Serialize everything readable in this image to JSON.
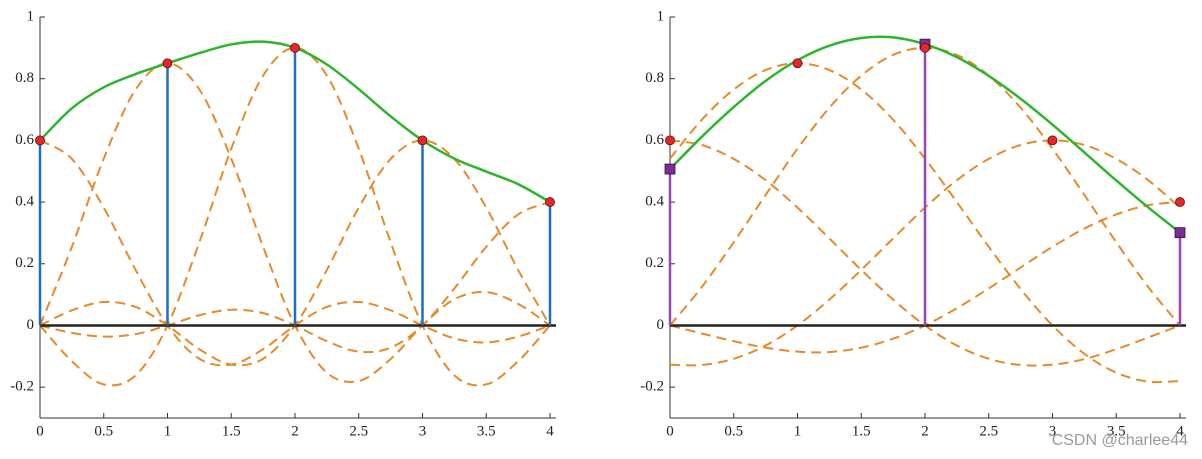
{
  "chart_data": [
    {
      "type": "line",
      "x": [
        0,
        0.25,
        0.5,
        0.75,
        1,
        1.25,
        1.5,
        1.75,
        2,
        2.25,
        2.5,
        2.75,
        3,
        3.25,
        3.5,
        3.75,
        4
      ],
      "series": [
        {
          "color": "#2db52d",
          "style": "solid",
          "values": [
            0.6,
            0.704,
            0.772,
            0.815,
            0.85,
            0.883,
            0.911,
            0.92,
            0.9,
            0.846,
            0.766,
            0.678,
            0.6,
            0.541,
            0.499,
            0.458,
            0.4
          ]
        },
        {
          "color": "#e8892a",
          "style": "dashed",
          "values": [
            0.6,
            0.54,
            0.382,
            0.18,
            0,
            -0.108,
            -0.127,
            -0.077,
            0,
            0.06,
            0.076,
            0.049,
            0,
            -0.042,
            -0.055,
            -0.036,
            0
          ]
        },
        {
          "color": "#e8892a",
          "style": "dashed",
          "values": [
            0,
            0.255,
            0.541,
            0.765,
            0.85,
            0.765,
            0.541,
            0.255,
            0,
            -0.153,
            -0.18,
            -0.109,
            0,
            0.085,
            0.108,
            0.07,
            0
          ]
        },
        {
          "color": "#e8892a",
          "style": "dashed",
          "values": [
            0,
            -0.116,
            -0.191,
            -0.162,
            0,
            0.27,
            0.573,
            0.81,
            0.9,
            0.81,
            0.573,
            0.27,
            0,
            -0.162,
            -0.191,
            -0.116,
            0
          ]
        },
        {
          "color": "#e8892a",
          "style": "dashed",
          "values": [
            0,
            0.049,
            0.076,
            0.06,
            0,
            -0.077,
            -0.127,
            -0.108,
            0,
            0.18,
            0.382,
            0.54,
            0.6,
            0.54,
            0.382,
            0.18,
            0
          ]
        },
        {
          "color": "#e8892a",
          "style": "dashed",
          "values": [
            0,
            -0.024,
            -0.036,
            -0.028,
            0,
            0.033,
            0.051,
            0.04,
            0,
            -0.051,
            -0.085,
            -0.072,
            0,
            0.12,
            0.255,
            0.36,
            0.4
          ]
        }
      ],
      "points": [
        {
          "x": [
            0,
            1,
            2,
            3,
            4
          ],
          "values": [
            0.6,
            0.85,
            0.9,
            0.6,
            0.4
          ],
          "marker": "circle",
          "color": "#e8262a",
          "stem_color": "#1f6fbf"
        }
      ],
      "xlim": [
        0,
        4
      ],
      "ylim": [
        -0.3,
        1
      ],
      "xticks": [
        0,
        0.5,
        1,
        1.5,
        2,
        2.5,
        3,
        3.5,
        4
      ],
      "yticks": [
        -0.2,
        0,
        0.2,
        0.4,
        0.6,
        0.8,
        1
      ],
      "grid": false
    },
    {
      "type": "line",
      "x": [
        0,
        0.25,
        0.5,
        0.75,
        1,
        1.25,
        1.5,
        1.75,
        2,
        2.25,
        2.5,
        2.75,
        3,
        3.25,
        3.5,
        3.75,
        4
      ],
      "series": [
        {
          "color": "#e8892a",
          "style": "dashed",
          "values": [
            0.6,
            0.585,
            0.54,
            0.471,
            0.382,
            0.282,
            0.18,
            0.084,
            0,
            -0.065,
            -0.108,
            -0.128,
            -0.127,
            -0.109,
            -0.077,
            -0.039,
            0
          ]
        },
        {
          "color": "#e8892a",
          "style": "dashed",
          "values": [
            0.541,
            0.667,
            0.765,
            0.828,
            0.85,
            0.828,
            0.765,
            0.667,
            0.541,
            0.4,
            0.255,
            0.118,
            0,
            -0.092,
            -0.153,
            -0.182,
            -0.18
          ]
        },
        {
          "color": "#e8892a",
          "style": "dashed",
          "values": [
            0,
            0.125,
            0.27,
            0.423,
            0.573,
            0.706,
            0.81,
            0.877,
            0.9,
            0.877,
            0.81,
            0.706,
            0.573,
            0.423,
            0.27,
            0.125,
            0
          ]
        },
        {
          "color": "#e8892a",
          "style": "dashed",
          "values": [
            -0.127,
            -0.128,
            -0.108,
            -0.065,
            0,
            0.084,
            0.18,
            0.282,
            0.382,
            0.471,
            0.54,
            0.585,
            0.6,
            0.585,
            0.54,
            0.471,
            0.382
          ]
        },
        {
          "color": "#e8892a",
          "style": "dashed",
          "values": [
            0,
            -0.026,
            -0.051,
            -0.072,
            -0.085,
            -0.086,
            -0.072,
            -0.043,
            0,
            0.056,
            0.12,
            0.188,
            0.255,
            0.314,
            0.36,
            0.39,
            0.4
          ]
        },
        {
          "color": "#2db52d",
          "style": "solid",
          "values": [
            0.507,
            0.612,
            0.708,
            0.793,
            0.86,
            0.907,
            0.932,
            0.934,
            0.912,
            0.87,
            0.809,
            0.735,
            0.651,
            0.561,
            0.47,
            0.383,
            0.301
          ]
        }
      ],
      "points": [
        {
          "x": [
            0,
            2,
            4
          ],
          "values": [
            0.507,
            0.912,
            0.301
          ],
          "marker": "square",
          "color": "#7b2e8e",
          "stem_color": "#9b45b0"
        },
        {
          "x": [
            0,
            1,
            2,
            3,
            4
          ],
          "values": [
            0.6,
            0.85,
            0.9,
            0.6,
            0.4
          ],
          "marker": "circle",
          "color": "#e8262a"
        }
      ],
      "xlim": [
        0,
        4
      ],
      "ylim": [
        -0.3,
        1
      ],
      "xticks": [
        0,
        0.5,
        1,
        1.5,
        2,
        2.5,
        3,
        3.5,
        4
      ],
      "yticks": [
        -0.2,
        0,
        0.2,
        0.4,
        0.6,
        0.8,
        1
      ],
      "grid": false,
      "watermark": "CSDN @charlee44"
    }
  ]
}
